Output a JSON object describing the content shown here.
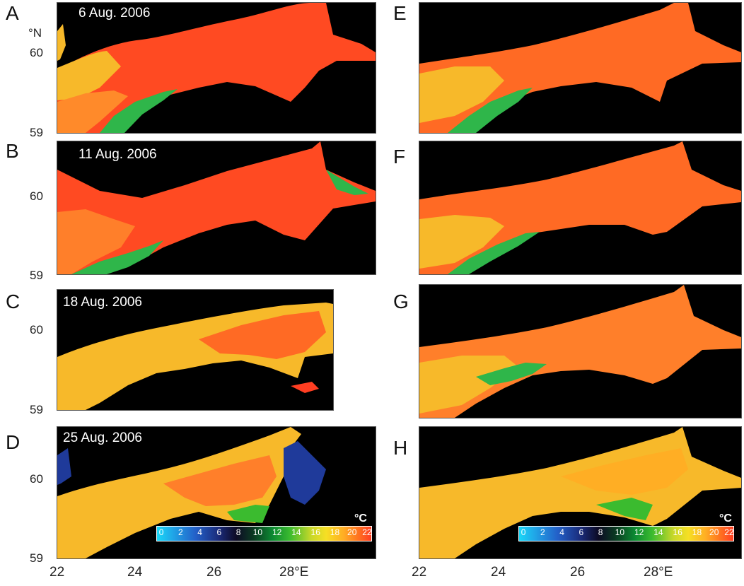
{
  "panels": [
    {
      "letter": "A",
      "date": "6 Aug. 2006"
    },
    {
      "letter": "B",
      "date": "11 Aug. 2006"
    },
    {
      "letter": "C",
      "date": "18 Aug. 2006"
    },
    {
      "letter": "D",
      "date": "25 Aug. 2006"
    },
    {
      "letter": "E",
      "date": ""
    },
    {
      "letter": "F",
      "date": ""
    },
    {
      "letter": "G",
      "date": ""
    },
    {
      "letter": "H",
      "date": ""
    }
  ],
  "lat_unit": "°N",
  "lat_ticks": [
    "60",
    "59"
  ],
  "lon_ticks": [
    "22",
    "24",
    "26",
    "28°E"
  ],
  "colorbar": {
    "unit": "°C",
    "ticks": [
      "0",
      "2",
      "4",
      "6",
      "8",
      "10",
      "12",
      "14",
      "16",
      "18",
      "20",
      "22"
    ]
  },
  "colors": {
    "land": "#000000",
    "warm": "#ff4a22",
    "mid": "#f7b92a",
    "cool": "#2fb64a"
  }
}
